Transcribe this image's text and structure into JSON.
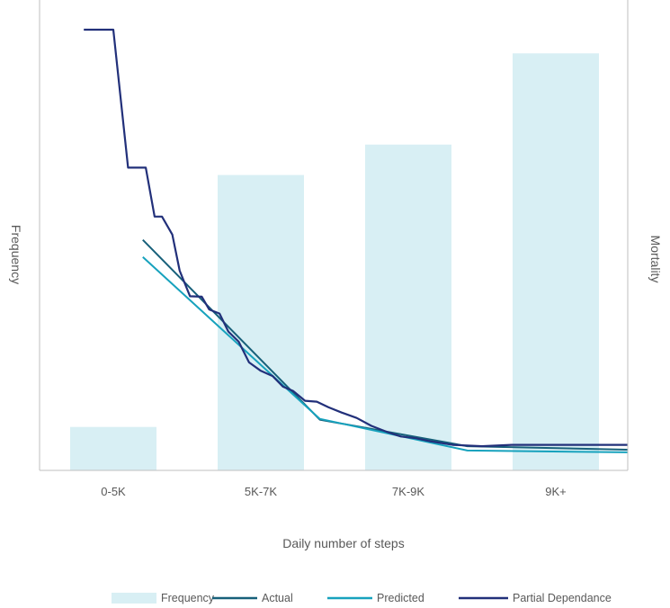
{
  "chart_data": {
    "type": "bar",
    "title": "",
    "xlabel": "Daily number of steps",
    "ylabel_left": "Frequency",
    "ylabel_right": "Mortality",
    "categories": [
      "0-5K",
      "5K-7K",
      "7K-9K",
      "9K+"
    ],
    "frequency": {
      "name": "Frequency",
      "values": [
        0.1,
        0.68,
        0.75,
        0.96
      ],
      "ylim": [
        0,
        1
      ]
    },
    "line_ylim": [
      0,
      1
    ],
    "lines": [
      {
        "name": "Actual",
        "color": "#17607a",
        "points": [
          [
            0.2,
            0.523
          ],
          [
            1.4,
            0.115
          ],
          [
            2.4,
            0.055
          ],
          [
            3.5,
            0.047
          ]
        ]
      },
      {
        "name": "Predicted",
        "color": "#17a2bd",
        "points": [
          [
            0.2,
            0.484
          ],
          [
            1.4,
            0.117
          ],
          [
            2.4,
            0.045
          ],
          [
            3.5,
            0.041
          ]
        ]
      },
      {
        "name": "Partial Dependance",
        "color": "#22307a",
        "points": [
          [
            -0.2,
            1.0
          ],
          [
            0.0,
            1.0
          ],
          [
            0.1,
            0.687
          ],
          [
            0.22,
            0.687
          ],
          [
            0.28,
            0.576
          ],
          [
            0.33,
            0.576
          ],
          [
            0.4,
            0.535
          ],
          [
            0.45,
            0.453
          ],
          [
            0.52,
            0.395
          ],
          [
            0.6,
            0.394
          ],
          [
            0.65,
            0.365
          ],
          [
            0.72,
            0.356
          ],
          [
            0.78,
            0.315
          ],
          [
            0.85,
            0.292
          ],
          [
            0.92,
            0.245
          ],
          [
            1.0,
            0.226
          ],
          [
            1.08,
            0.214
          ],
          [
            1.15,
            0.19
          ],
          [
            1.22,
            0.18
          ],
          [
            1.3,
            0.158
          ],
          [
            1.38,
            0.156
          ],
          [
            1.46,
            0.143
          ],
          [
            1.55,
            0.131
          ],
          [
            1.65,
            0.119
          ],
          [
            1.75,
            0.101
          ],
          [
            1.85,
            0.088
          ],
          [
            1.95,
            0.077
          ],
          [
            2.05,
            0.073
          ],
          [
            2.15,
            0.066
          ],
          [
            2.3,
            0.058
          ],
          [
            2.5,
            0.055
          ],
          [
            2.7,
            0.058
          ],
          [
            3.0,
            0.058
          ],
          [
            3.5,
            0.058
          ],
          [
            4.0,
            0.058
          ]
        ]
      }
    ],
    "legend": {
      "position": "bottom",
      "items": [
        {
          "label": "Frequency",
          "kind": "bar"
        },
        {
          "label": "Actual",
          "kind": "line"
        },
        {
          "label": "Predicted",
          "kind": "line"
        },
        {
          "label": "Partial Dependance",
          "kind": "line"
        }
      ]
    },
    "colors": {
      "bar": "#d8eff4",
      "axis": "#bfbfbf",
      "text": "#595959"
    }
  }
}
